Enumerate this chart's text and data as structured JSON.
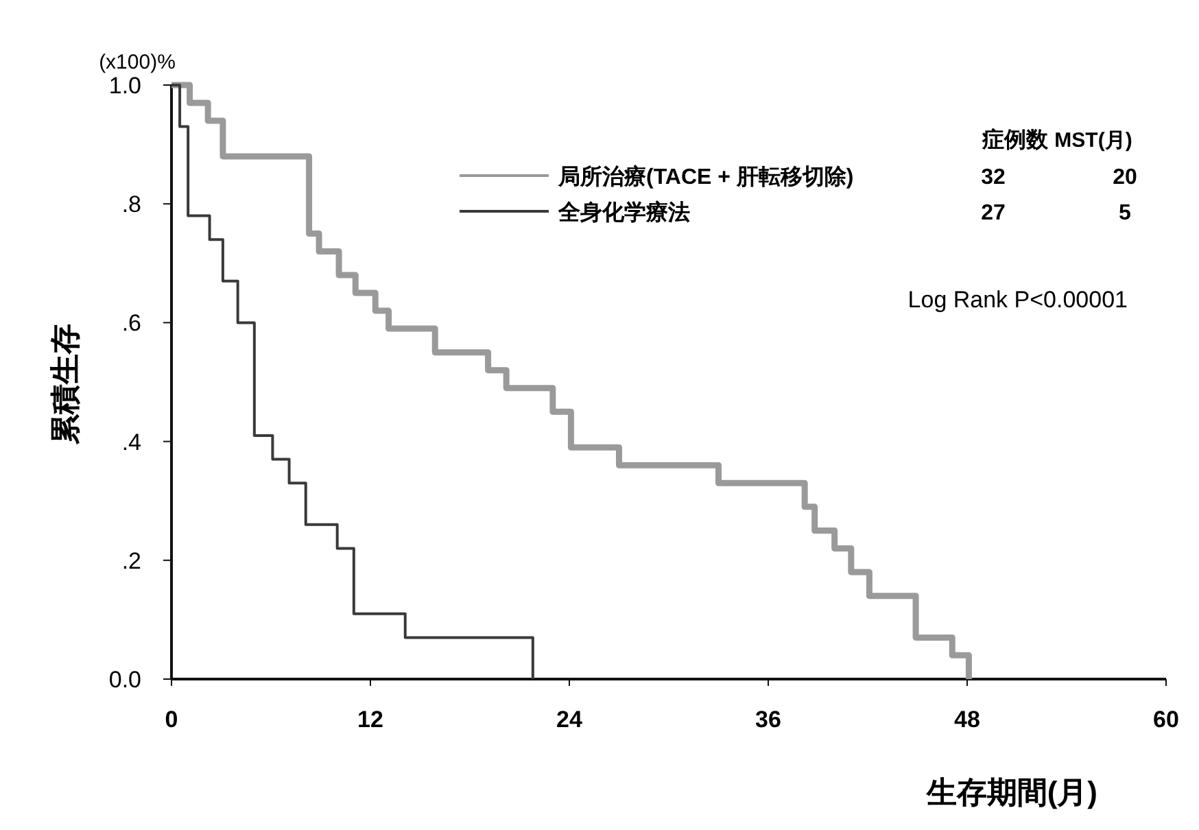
{
  "chart_data": {
    "type": "step",
    "xlabel": "生存期間(月)",
    "ylabel": "累積生存",
    "annotations": [
      "(x100)%",
      "症例数",
      "MST(月)",
      "32",
      "20",
      "27",
      "5",
      "Log Rank P<0.00001"
    ],
    "series": [
      {
        "name": "局所治療(TACE + 肝転移切除)",
        "color": "#9a9a9a",
        "x": [
          0,
          1.1,
          2.2,
          3.1,
          8.3,
          8.9,
          10.1,
          11.1,
          12.3,
          13.1,
          15.9,
          19.1,
          20.2,
          23.0,
          24.1,
          27.0,
          33.0,
          38.2,
          38.8,
          40.0,
          41.0,
          42.1,
          44.9,
          47.1,
          48.1
        ],
        "values": [
          1.0,
          0.97,
          0.94,
          0.88,
          0.75,
          0.72,
          0.68,
          0.65,
          0.62,
          0.59,
          0.55,
          0.52,
          0.49,
          0.45,
          0.39,
          0.36,
          0.33,
          0.29,
          0.25,
          0.22,
          0.18,
          0.14,
          0.07,
          0.04,
          0
        ]
      },
      {
        "name": "全身化学療法",
        "color": "#3a3a3a",
        "x": [
          0,
          0.5,
          1.0,
          2.3,
          3.1,
          4.0,
          5.0,
          6.1,
          7.1,
          8.1,
          10.0,
          11.0,
          14.1,
          21.8
        ],
        "values": [
          1.0,
          0.93,
          0.78,
          0.74,
          0.67,
          0.6,
          0.41,
          0.37,
          0.33,
          0.26,
          0.22,
          0.11,
          0.07,
          0
        ]
      }
    ],
    "xlim": [
      0,
      60
    ],
    "xticks": [
      0,
      12,
      24,
      36,
      48,
      60
    ],
    "ylim": [
      0,
      1
    ],
    "yticks": [
      {
        "value": 0,
        "label": "0.0"
      },
      {
        "value": 0.2,
        "label": ".2"
      },
      {
        "value": 0.4,
        "label": ".4"
      },
      {
        "value": 0.6,
        "label": ".6"
      },
      {
        "value": 0.8,
        "label": ".8"
      },
      {
        "value": 1,
        "label": "1.0"
      }
    ],
    "grid": false,
    "legend": "top right"
  }
}
